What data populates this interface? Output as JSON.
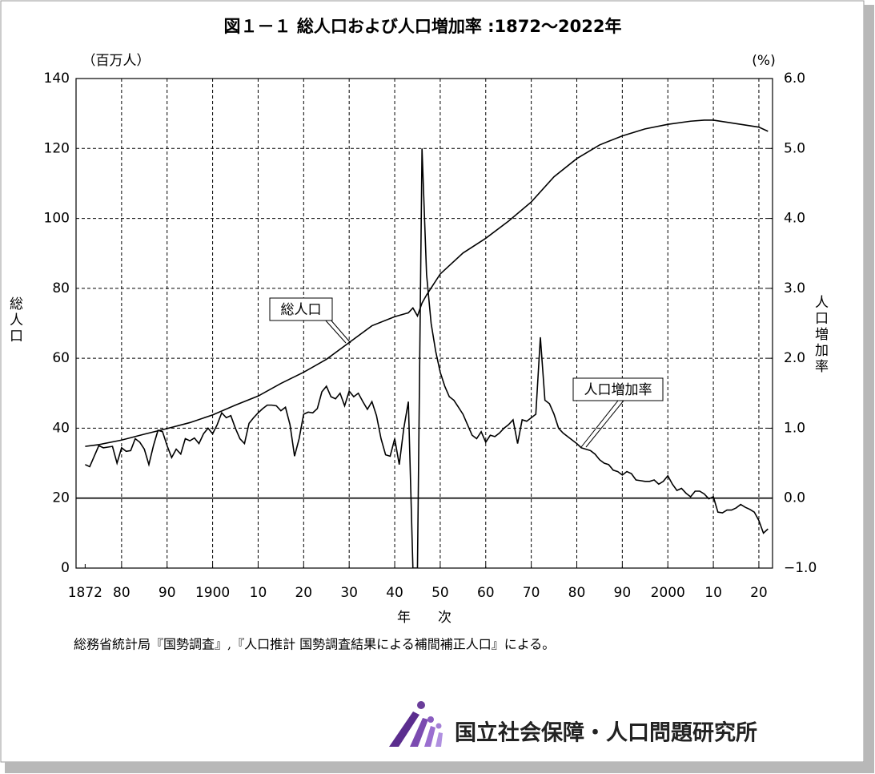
{
  "chart_data": {
    "type": "line",
    "title": "図１－１ 総人口および人口増加率 :1872～2022年",
    "ylabel": "総人口",
    "yunit": "（百万人）",
    "y2label": "人口増加率",
    "y2unit": "(%)",
    "xlabel": "年　　次",
    "source": "総務省統計局『国勢調査』,『人口推計 国勢調査結果による補間補正人口』による。",
    "logo": "国立社会保障・人口問題研究所",
    "xlim": [
      1870,
      2023
    ],
    "xticks": [
      1872,
      {
        "value": 1880,
        "label": "80"
      },
      {
        "value": 1890,
        "label": "90"
      },
      1900,
      {
        "value": 1910,
        "label": "10"
      },
      {
        "value": 1920,
        "label": "20"
      },
      {
        "value": 1930,
        "label": "30"
      },
      {
        "value": 1940,
        "label": "40"
      },
      {
        "value": 1950,
        "label": "50"
      },
      {
        "value": 1960,
        "label": "60"
      },
      {
        "value": 1970,
        "label": "70"
      },
      {
        "value": 1980,
        "label": "80"
      },
      {
        "value": 1990,
        "label": "90"
      },
      2000,
      {
        "value": 2010,
        "label": "10"
      },
      {
        "value": 2020,
        "label": "20"
      }
    ],
    "ylim": [
      0,
      140
    ],
    "yticks": [
      0,
      20,
      40,
      60,
      80,
      100,
      120,
      140
    ],
    "y2lim": [
      -1,
      6
    ],
    "y2ticks": [
      {
        "value": -1,
        "label": "−1.0"
      },
      {
        "value": 0,
        "label": "0.0"
      },
      {
        "value": 1,
        "label": "1.0"
      },
      {
        "value": 2,
        "label": "2.0"
      },
      {
        "value": 3,
        "label": "3.0"
      },
      {
        "value": 4,
        "label": "4.0"
      },
      {
        "value": 5,
        "label": "5.0"
      },
      {
        "value": 6,
        "label": "6.0"
      }
    ],
    "grid": true,
    "zero_line": true,
    "series": [
      {
        "name": "総人口",
        "color": "#000000",
        "axis": "y",
        "x": [
          1872,
          1875,
          1880,
          1885,
          1890,
          1895,
          1900,
          1905,
          1910,
          1915,
          1920,
          1925,
          1930,
          1935,
          1940,
          1943,
          1944,
          1945,
          1946,
          1947,
          1950,
          1955,
          1960,
          1965,
          1970,
          1975,
          1980,
          1985,
          1990,
          1995,
          2000,
          2005,
          2008,
          2010,
          2015,
          2020,
          2022
        ],
        "values": [
          34.8,
          35.3,
          36.6,
          38.3,
          39.9,
          41.6,
          43.8,
          46.6,
          49.2,
          52.8,
          56.0,
          59.7,
          64.5,
          69.3,
          71.9,
          73.0,
          74.4,
          72.1,
          75.8,
          78.1,
          84.1,
          90.1,
          94.3,
          99.2,
          104.7,
          111.9,
          117.1,
          121.0,
          123.6,
          125.6,
          126.9,
          127.8,
          128.1,
          128.1,
          127.1,
          126.1,
          124.9
        ]
      },
      {
        "name": "人口増加率",
        "color": "#000000",
        "axis": "y2",
        "x": [
          1872,
          1873,
          1874,
          1875,
          1876,
          1877,
          1878,
          1879,
          1880,
          1881,
          1882,
          1883,
          1884,
          1885,
          1886,
          1887,
          1888,
          1889,
          1890,
          1891,
          1892,
          1893,
          1894,
          1895,
          1896,
          1897,
          1898,
          1899,
          1900,
          1901,
          1902,
          1903,
          1904,
          1905,
          1906,
          1907,
          1908,
          1909,
          1910,
          1911,
          1912,
          1913,
          1914,
          1915,
          1916,
          1917,
          1918,
          1919,
          1920,
          1921,
          1922,
          1923,
          1924,
          1925,
          1926,
          1927,
          1928,
          1929,
          1930,
          1931,
          1932,
          1933,
          1934,
          1935,
          1936,
          1937,
          1938,
          1939,
          1940,
          1941,
          1942,
          1943,
          1944,
          1945,
          1946,
          1947,
          1948,
          1949,
          1950,
          1951,
          1952,
          1953,
          1954,
          1955,
          1956,
          1957,
          1958,
          1959,
          1960,
          1961,
          1962,
          1963,
          1964,
          1965,
          1966,
          1967,
          1968,
          1969,
          1970,
          1971,
          1972,
          1973,
          1974,
          1975,
          1976,
          1977,
          1978,
          1979,
          1980,
          1981,
          1982,
          1983,
          1984,
          1985,
          1986,
          1987,
          1988,
          1989,
          1990,
          1991,
          1992,
          1993,
          1994,
          1995,
          1996,
          1997,
          1998,
          1999,
          2000,
          2001,
          2002,
          2003,
          2004,
          2005,
          2006,
          2007,
          2008,
          2009,
          2010,
          2011,
          2012,
          2013,
          2014,
          2015,
          2016,
          2017,
          2018,
          2019,
          2020,
          2021,
          2022
        ],
        "values": [
          0.48,
          0.45,
          0.6,
          0.75,
          0.72,
          0.73,
          0.74,
          0.5,
          0.72,
          0.67,
          0.68,
          0.85,
          0.8,
          0.7,
          0.48,
          0.75,
          0.97,
          0.95,
          0.75,
          0.58,
          0.7,
          0.63,
          0.85,
          0.82,
          0.86,
          0.78,
          0.92,
          1.0,
          0.92,
          1.05,
          1.22,
          1.15,
          1.18,
          1.0,
          0.85,
          0.78,
          1.07,
          1.15,
          1.22,
          1.28,
          1.33,
          1.33,
          1.32,
          1.25,
          1.3,
          1.05,
          0.6,
          0.85,
          1.2,
          1.23,
          1.22,
          1.28,
          1.52,
          1.6,
          1.45,
          1.42,
          1.5,
          1.32,
          1.53,
          1.45,
          1.5,
          1.38,
          1.27,
          1.38,
          1.18,
          0.85,
          0.62,
          0.6,
          0.85,
          0.48,
          1.0,
          1.38,
          -1.0,
          -1.0,
          5.0,
          3.2,
          2.5,
          2.1,
          1.8,
          1.6,
          1.45,
          1.4,
          1.3,
          1.2,
          1.05,
          0.9,
          0.85,
          0.95,
          0.8,
          0.9,
          0.88,
          0.93,
          1.0,
          1.05,
          1.12,
          0.78,
          1.12,
          1.1,
          1.15,
          1.2,
          2.3,
          1.4,
          1.35,
          1.2,
          1.0,
          0.93,
          0.88,
          0.83,
          0.78,
          0.72,
          0.7,
          0.68,
          0.63,
          0.55,
          0.5,
          0.48,
          0.4,
          0.38,
          0.33,
          0.38,
          0.35,
          0.26,
          0.25,
          0.24,
          0.24,
          0.26,
          0.2,
          0.24,
          0.32,
          0.2,
          0.11,
          0.14,
          0.07,
          0.02,
          0.1,
          0.1,
          0.06,
          -0.01,
          0.02,
          -0.2,
          -0.21,
          -0.17,
          -0.17,
          -0.14,
          -0.09,
          -0.13,
          -0.16,
          -0.2,
          -0.32,
          -0.5,
          -0.44
        ]
      }
    ]
  }
}
